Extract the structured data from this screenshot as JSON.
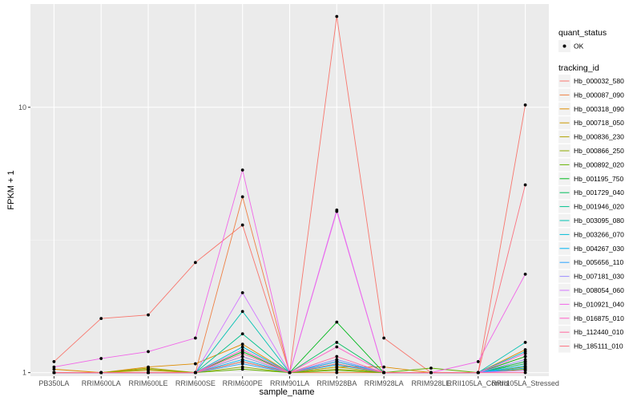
{
  "chart_data": {
    "type": "line",
    "xlabel": "sample_name",
    "ylabel": "FPKM + 1",
    "y_scale": "log10",
    "ylim": [
      0.97,
      24.5
    ],
    "y_ticks": [
      1,
      10
    ],
    "y_minor_ticks": [
      3.1623
    ],
    "grid": true,
    "categories": [
      "PB350LA",
      "RRIM600LA",
      "RRIM600LE",
      "RRIM600SE",
      "RRIM600PE",
      "RRIM901LA",
      "RRIM928BA",
      "RRIM928LA",
      "RRIM928LE",
      "RRII105LA_Control",
      "RRII105LA_Stressed"
    ],
    "legend": {
      "position": "right",
      "quant_status_title": "quant_status",
      "quant_status_items": [
        "OK"
      ],
      "tracking_id_title": "tracking_id"
    },
    "series": [
      {
        "name": "Hb_000032_580",
        "color": "#F8766D",
        "values": [
          1.1,
          1.6,
          1.65,
          2.6,
          3.6,
          1.0,
          22.0,
          1.35,
          1.0,
          1.0,
          10.2
        ]
      },
      {
        "name": "Hb_000087_090",
        "color": "#EE8044",
        "values": [
          1.0,
          1.0,
          1.0,
          1.0,
          4.6,
          1.0,
          1.0,
          1.0,
          1.0,
          1.0,
          1.15
        ]
      },
      {
        "name": "Hb_000318_090",
        "color": "#DE8C00",
        "values": [
          1.03,
          1.0,
          1.05,
          1.08,
          1.28,
          1.0,
          1.05,
          1.05,
          1.0,
          1.0,
          1.22
        ]
      },
      {
        "name": "Hb_000718_050",
        "color": "#C99800",
        "values": [
          1.0,
          1.0,
          1.02,
          1.0,
          1.15,
          1.0,
          1.1,
          1.0,
          1.0,
          1.0,
          1.1
        ]
      },
      {
        "name": "Hb_000836_230",
        "color": "#AFA100",
        "values": [
          1.0,
          1.0,
          1.04,
          1.0,
          1.1,
          1.0,
          1.05,
          1.0,
          1.0,
          1.0,
          1.08
        ]
      },
      {
        "name": "Hb_000866_250",
        "color": "#8EAB00",
        "values": [
          1.0,
          1.0,
          1.03,
          1.0,
          1.05,
          1.0,
          1.03,
          1.0,
          1.0,
          1.0,
          1.05
        ]
      },
      {
        "name": "Hb_000892_020",
        "color": "#64B200",
        "values": [
          1.0,
          1.0,
          1.0,
          1.0,
          1.03,
          1.0,
          1.02,
          1.0,
          1.04,
          1.0,
          1.03
        ]
      },
      {
        "name": "Hb_001195_750",
        "color": "#00B81B",
        "values": [
          1.0,
          1.0,
          1.0,
          1.0,
          1.2,
          1.0,
          1.55,
          1.0,
          1.0,
          1.0,
          1.15
        ]
      },
      {
        "name": "Hb_001729_040",
        "color": "#00BD5C",
        "values": [
          1.0,
          1.0,
          1.0,
          1.0,
          1.1,
          1.0,
          1.3,
          1.0,
          1.0,
          1.0,
          1.1
        ]
      },
      {
        "name": "Hb_001946_020",
        "color": "#00C08E",
        "values": [
          1.0,
          1.0,
          1.0,
          1.0,
          1.4,
          1.0,
          1.1,
          1.0,
          1.0,
          1.0,
          1.08
        ]
      },
      {
        "name": "Hb_003095_080",
        "color": "#00C1B2",
        "values": [
          1.0,
          1.0,
          1.0,
          1.0,
          1.7,
          1.0,
          1.08,
          1.0,
          1.0,
          1.0,
          1.3
        ]
      },
      {
        "name": "Hb_003266_070",
        "color": "#00BCD6",
        "values": [
          1.0,
          1.0,
          1.0,
          1.0,
          1.25,
          1.0,
          1.12,
          1.0,
          1.0,
          1.0,
          1.2
        ]
      },
      {
        "name": "Hb_004267_030",
        "color": "#00B3F2",
        "values": [
          1.0,
          1.0,
          1.0,
          1.0,
          1.12,
          1.0,
          1.07,
          1.0,
          1.0,
          1.0,
          1.06
        ]
      },
      {
        "name": "Hb_005656_110",
        "color": "#29A3FF",
        "values": [
          1.0,
          1.0,
          1.0,
          1.0,
          1.08,
          1.0,
          1.1,
          1.0,
          1.0,
          1.0,
          1.04
        ]
      },
      {
        "name": "Hb_007181_030",
        "color": "#9C8DFF",
        "values": [
          1.0,
          1.0,
          1.0,
          1.0,
          1.15,
          1.0,
          1.12,
          1.0,
          1.0,
          1.0,
          1.12
        ]
      },
      {
        "name": "Hb_008054_060",
        "color": "#D277FF",
        "values": [
          1.0,
          1.0,
          1.0,
          1.0,
          2.0,
          1.0,
          4.1,
          1.0,
          1.0,
          1.0,
          1.02
        ]
      },
      {
        "name": "Hb_010921_040",
        "color": "#F166E8",
        "values": [
          1.05,
          1.13,
          1.2,
          1.35,
          5.8,
          1.0,
          4.05,
          1.0,
          1.0,
          1.1,
          2.35
        ]
      },
      {
        "name": "Hb_016875_010",
        "color": "#FF61C7",
        "values": [
          1.0,
          1.0,
          1.0,
          1.0,
          1.22,
          1.0,
          1.25,
          1.0,
          1.0,
          1.0,
          1.18
        ]
      },
      {
        "name": "Hb_112440_010",
        "color": "#FF689E",
        "values": [
          1.0,
          1.0,
          1.0,
          1.0,
          1.18,
          1.0,
          1.15,
          1.0,
          1.0,
          1.0,
          1.0
        ]
      },
      {
        "name": "Hb_185111_010",
        "color": "#FC717F",
        "values": [
          1.0,
          1.0,
          1.0,
          1.0,
          1.1,
          1.0,
          1.08,
          1.0,
          1.0,
          1.0,
          5.1
        ]
      }
    ]
  }
}
